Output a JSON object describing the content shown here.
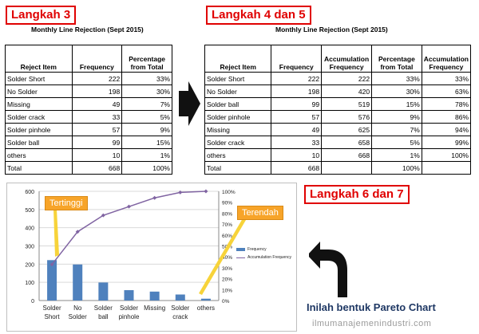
{
  "step3": {
    "label": "Langkah 3",
    "title": "Monthly Line Rejection (Sept 2015)",
    "headers": [
      "Reject Item",
      "Frequency",
      "Percentage from Total"
    ],
    "rows": [
      [
        "Solder Short",
        "222",
        "33%"
      ],
      [
        "No Solder",
        "198",
        "30%"
      ],
      [
        "Missing",
        "49",
        "7%"
      ],
      [
        "Solder crack",
        "33",
        "5%"
      ],
      [
        "Solder pinhole",
        "57",
        "9%"
      ],
      [
        "Solder ball",
        "99",
        "15%"
      ],
      [
        "others",
        "10",
        "1%"
      ],
      [
        "Total",
        "668",
        "100%"
      ]
    ]
  },
  "step45": {
    "label": "Langkah 4 dan 5",
    "title": "Monthly Line Rejection (Sept 2015)",
    "headers": [
      "Reject Item",
      "Frequency",
      "Accumulation Frequency",
      "Percentage from Total",
      "Accumulation Frequency"
    ],
    "rows": [
      [
        "Solder Short",
        "222",
        "222",
        "33%",
        "33%"
      ],
      [
        "No Solder",
        "198",
        "420",
        "30%",
        "63%"
      ],
      [
        "Solder ball",
        "99",
        "519",
        "15%",
        "78%"
      ],
      [
        "Solder pinhole",
        "57",
        "576",
        "9%",
        "86%"
      ],
      [
        "Missing",
        "49",
        "625",
        "7%",
        "94%"
      ],
      [
        "Solder crack",
        "33",
        "658",
        "5%",
        "99%"
      ],
      [
        "others",
        "10",
        "668",
        "1%",
        "100%"
      ],
      [
        "Total",
        "668",
        "",
        "100%",
        ""
      ]
    ]
  },
  "step67": {
    "label": "Langkah 6 dan 7"
  },
  "chart": {
    "callout_high": "Tertinggi",
    "callout_low": "Terendah",
    "legend_bar": "Frequency",
    "legend_line": "Accumulation Frequency"
  },
  "chart_data": {
    "type": "bar",
    "categories": [
      "Solder Short",
      "No Solder",
      "Solder ball",
      "Solder pinhole",
      "Missing",
      "Solder crack",
      "others"
    ],
    "series": [
      {
        "name": "Frequency",
        "type": "bar",
        "values": [
          222,
          198,
          99,
          57,
          49,
          33,
          10
        ],
        "color": "#4f81bd"
      },
      {
        "name": "Accumulation Frequency",
        "type": "line",
        "axis": "right",
        "values": [
          33,
          63,
          78,
          86,
          94,
          99,
          100
        ],
        "color": "#8064a2"
      }
    ],
    "ylim": [
      0,
      600
    ],
    "yticks": [
      0,
      100,
      200,
      300,
      400,
      500,
      600
    ],
    "y2lim": [
      0,
      100
    ],
    "y2ticks": [
      "0%",
      "10%",
      "20%",
      "30%",
      "40%",
      "50%",
      "60%",
      "70%",
      "80%",
      "90%",
      "100%"
    ],
    "grid": true,
    "legend": "right"
  },
  "caption": "Inilah bentuk Pareto Chart",
  "website": "ilmumanajemenindustri.com",
  "colors": {
    "accent_red": "#e00000",
    "callout_orange": "#f7a429",
    "bar_blue": "#4f81bd",
    "line_purple": "#8064a2",
    "caption_navy": "#1f3864"
  }
}
